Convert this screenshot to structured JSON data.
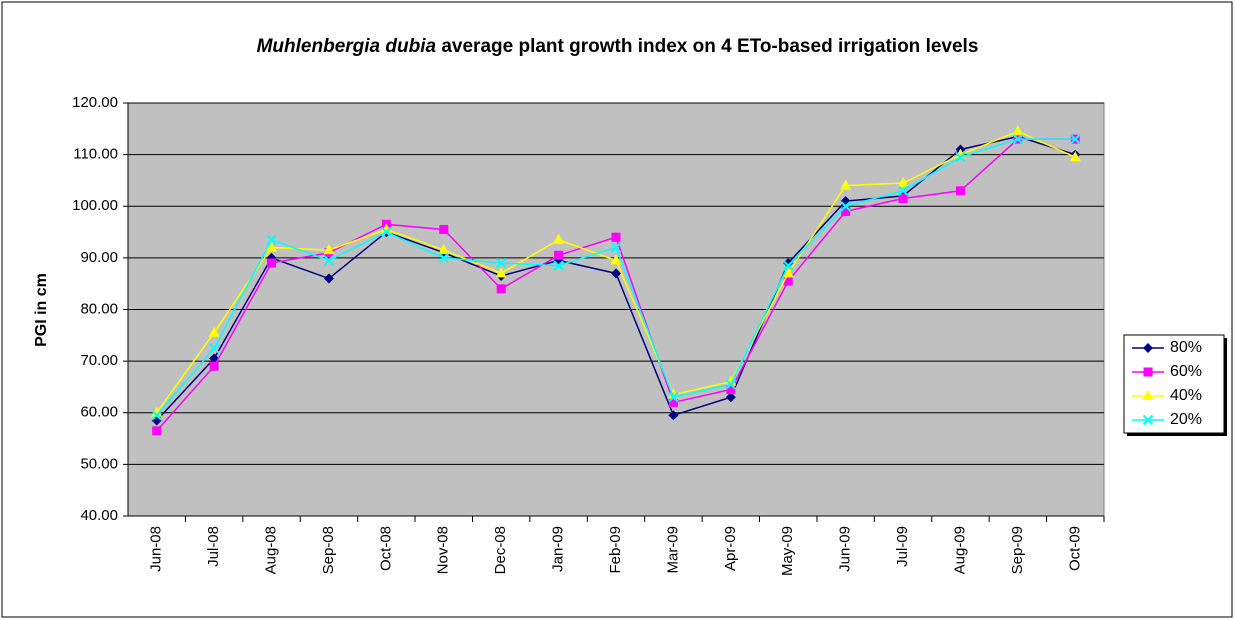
{
  "chart_data": {
    "type": "line",
    "title": {
      "italic": "Muhlenbergia dubia",
      "rest": "average plant growth index on 4 ETo-based irrigation levels"
    },
    "y_label": "PGI in cm",
    "categories": [
      "Jun-08",
      "Jul-08",
      "Aug-08",
      "Sep-08",
      "Oct-08",
      "Nov-08",
      "Dec-08",
      "Jan-09",
      "Feb-09",
      "Mar-09",
      "Apr-09",
      "May-09",
      "Jun-09",
      "Jul-09",
      "Aug-09",
      "Sep-09",
      "Oct-09"
    ],
    "series": [
      {
        "name": "80%",
        "color": "#000080",
        "marker": "diamond",
        "values": [
          58.5,
          70.5,
          90,
          86,
          95,
          91,
          86.5,
          89.5,
          87,
          59.5,
          63,
          89,
          101,
          102,
          111,
          113.5,
          110
        ]
      },
      {
        "name": "60%",
        "color": "#ff00ff",
        "marker": "square",
        "values": [
          56.5,
          69,
          89,
          91,
          96.5,
          95.5,
          84,
          90.5,
          94,
          62,
          64.5,
          85.5,
          99,
          101.5,
          103,
          113,
          113
        ]
      },
      {
        "name": "40%",
        "color": "#ffff00",
        "marker": "triangle",
        "values": [
          60,
          75.5,
          92,
          91.5,
          95.5,
          91.5,
          87,
          93.5,
          89.5,
          63.5,
          66,
          87,
          104,
          104.5,
          110,
          114.5,
          109.5
        ]
      },
      {
        "name": "20%",
        "color": "#00ffff",
        "marker": "x",
        "values": [
          59.5,
          72.5,
          93.5,
          89.5,
          95,
          90,
          89,
          88.5,
          92,
          63,
          65.5,
          88.5,
          100,
          103,
          109.5,
          113,
          113
        ]
      }
    ],
    "ylim": [
      40,
      120
    ],
    "yticks": [
      {
        "value": 40,
        "label": "40.00"
      },
      {
        "value": 50,
        "label": "50.00"
      },
      {
        "value": 60,
        "label": "60.00"
      },
      {
        "value": 70,
        "label": "70.00"
      },
      {
        "value": 80,
        "label": "80.00"
      },
      {
        "value": 90,
        "label": "90.00"
      },
      {
        "value": 100,
        "label": "100.00"
      },
      {
        "value": 110,
        "label": "110.00"
      },
      {
        "value": 120,
        "label": "120.00"
      }
    ],
    "grid": true,
    "legend": "right",
    "plot_background": "#c0c0c0"
  }
}
